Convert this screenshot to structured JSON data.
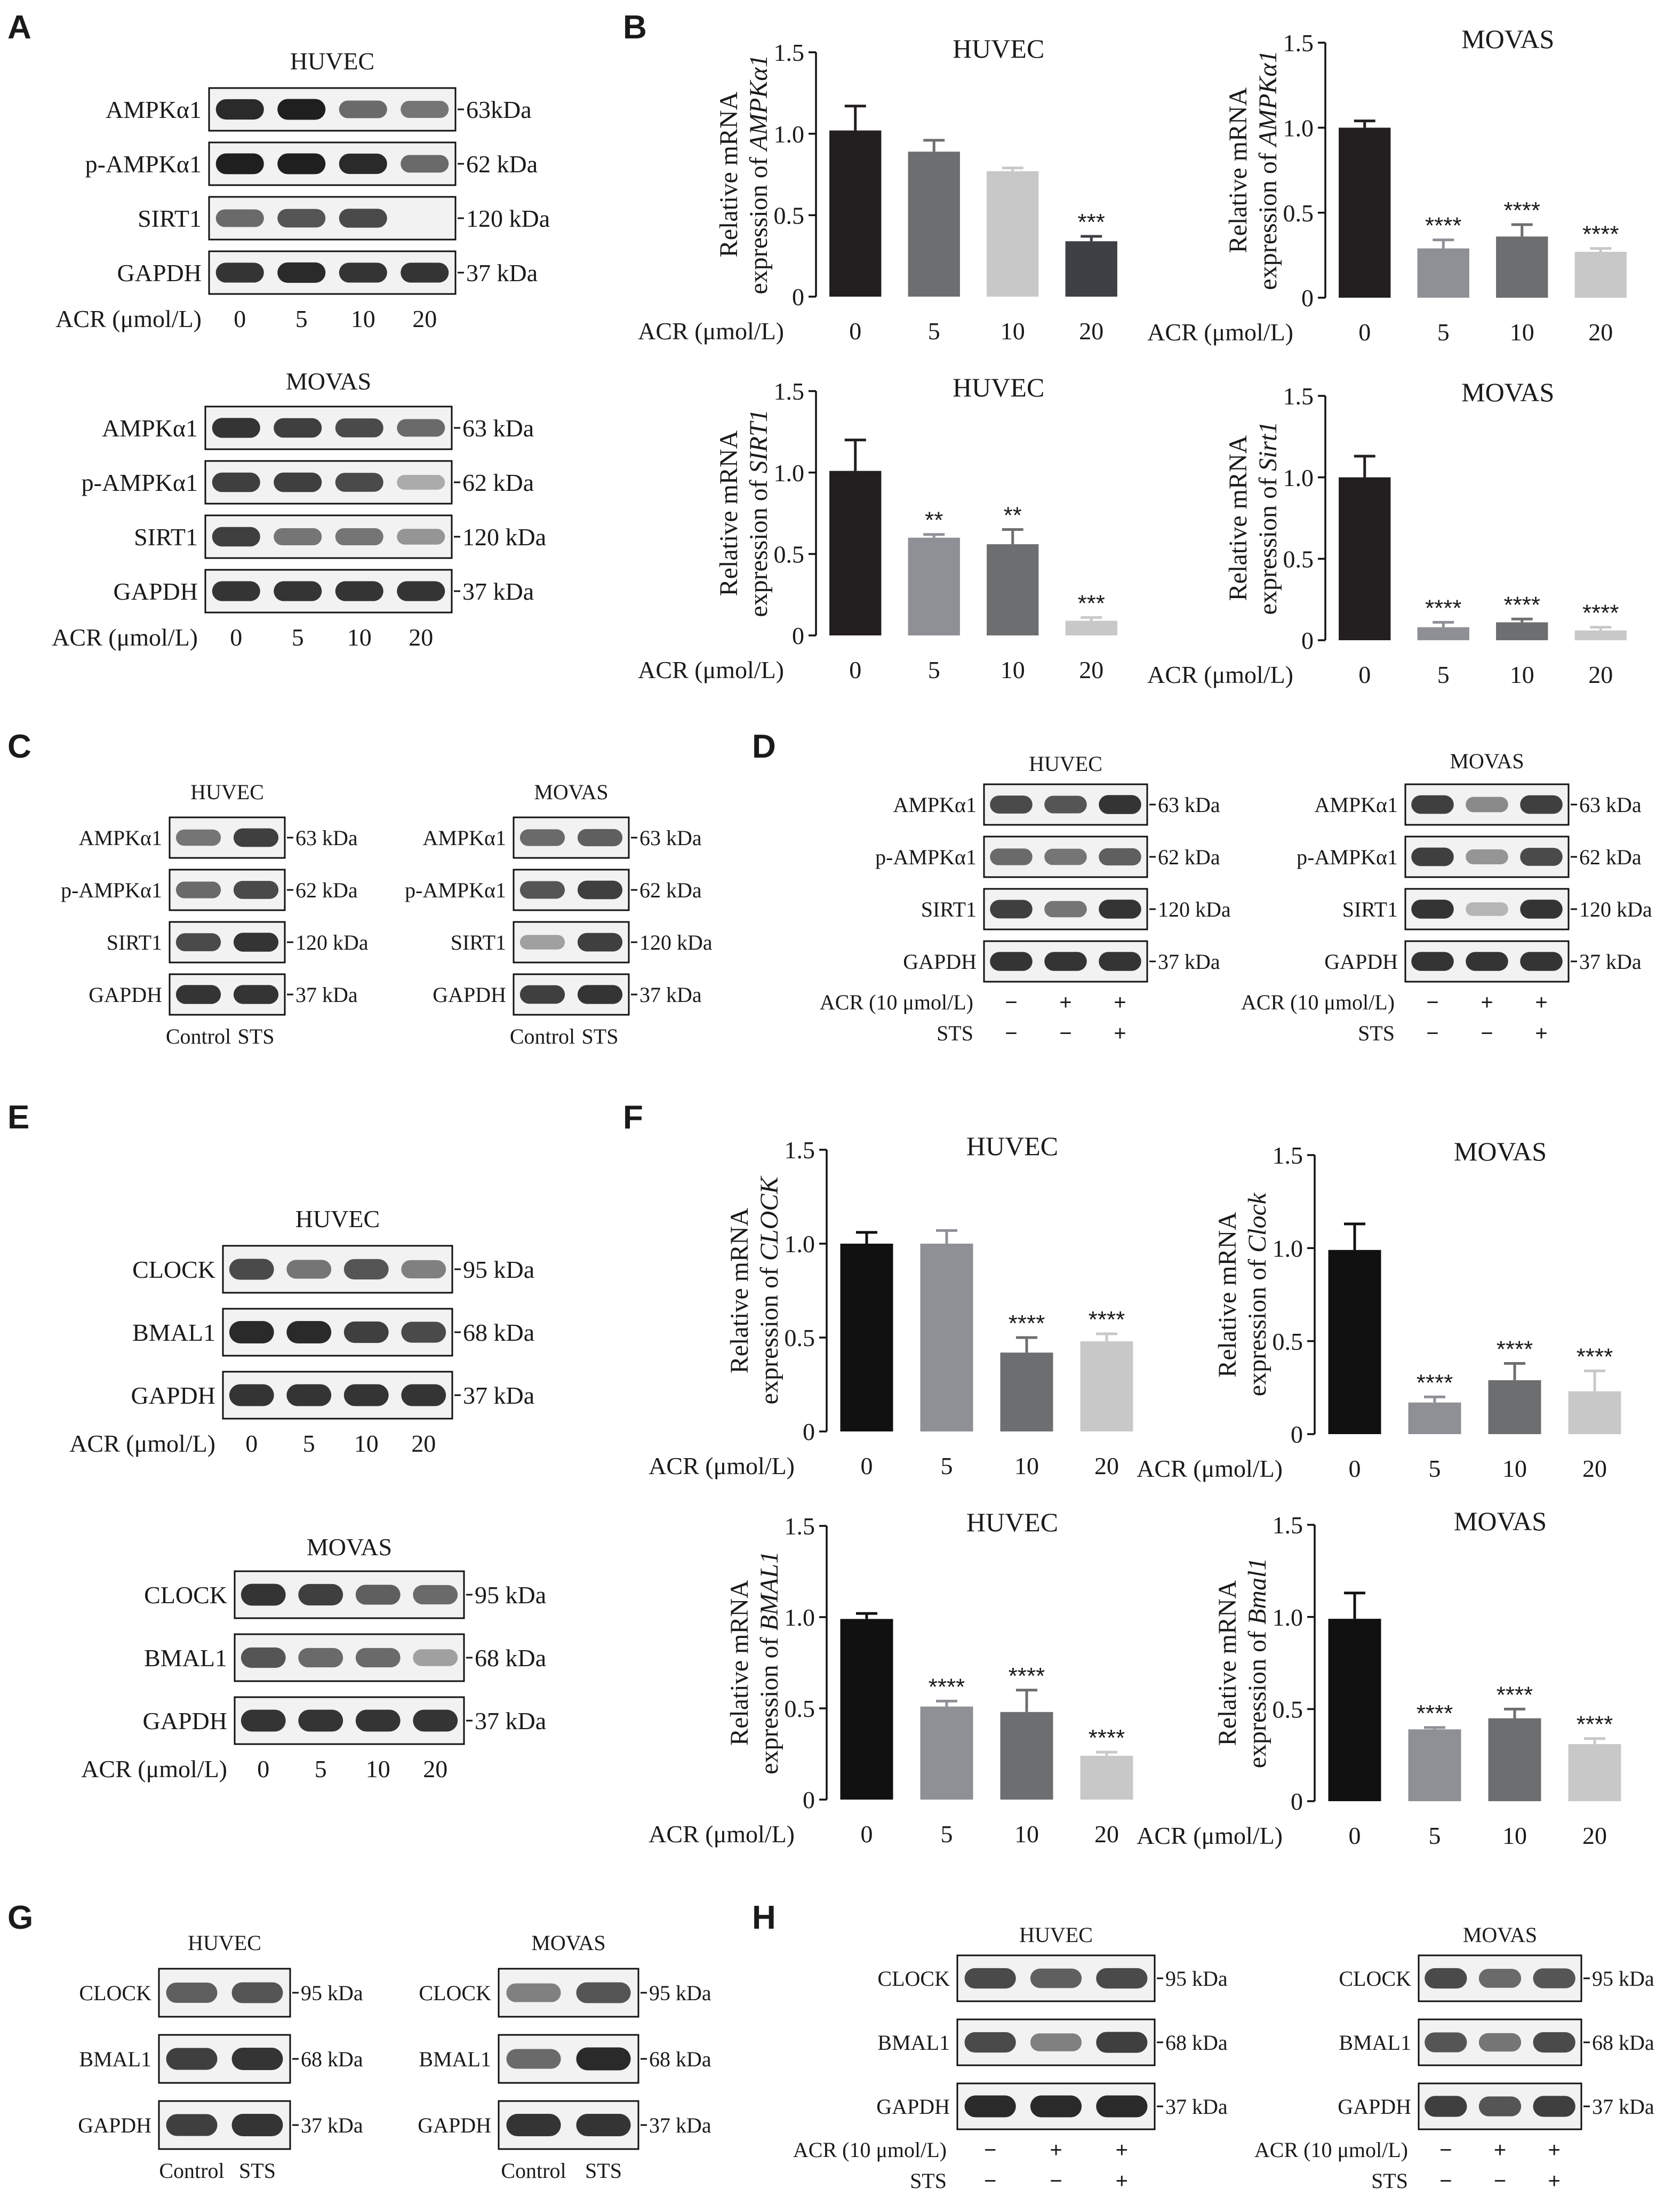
{
  "panels": {
    "A": {
      "label": "A",
      "blots": [
        {
          "cell": "HUVEC",
          "rows": [
            {
              "protein": "AMPKα1",
              "size": "63kDa",
              "intensities": [
                0.9,
                0.95,
                0.6,
                0.55
              ]
            },
            {
              "protein": "p-AMPKα1",
              "size": "62 kDa",
              "intensities": [
                0.95,
                0.95,
                0.9,
                0.6
              ]
            },
            {
              "protein": "SIRT1",
              "size": "120 kDa",
              "intensities": [
                0.6,
                0.7,
                0.75,
                0.0
              ]
            },
            {
              "protein": "GAPDH",
              "size": "37 kDa",
              "intensities": [
                0.85,
                0.9,
                0.85,
                0.85
              ]
            }
          ],
          "treatment_label": "ACR (μmol/L)",
          "lanes": [
            "0",
            "5",
            "10",
            "20"
          ]
        },
        {
          "cell": "MOVAS",
          "rows": [
            {
              "protein": "AMPKα1",
              "size": "63 kDa",
              "intensities": [
                0.85,
                0.8,
                0.75,
                0.6
              ]
            },
            {
              "protein": "p-AMPKα1",
              "size": "62 kDa",
              "intensities": [
                0.8,
                0.8,
                0.75,
                0.3
              ]
            },
            {
              "protein": "SIRT1",
              "size": "120 kDa",
              "intensities": [
                0.8,
                0.55,
                0.55,
                0.4
              ]
            },
            {
              "protein": "GAPDH",
              "size": "37 kDa",
              "intensities": [
                0.85,
                0.85,
                0.85,
                0.85
              ]
            }
          ],
          "treatment_label": "ACR (μmol/L)",
          "lanes": [
            "0",
            "5",
            "10",
            "20"
          ]
        }
      ]
    },
    "B": {
      "label": "B"
    },
    "C": {
      "label": "C",
      "blots": [
        {
          "cell": "HUVEC",
          "rows": [
            {
              "protein": "AMPKα1",
              "size": "63 kDa",
              "intensities": [
                0.55,
                0.8
              ]
            },
            {
              "protein": "p-AMPKα1",
              "size": "62 kDa",
              "intensities": [
                0.6,
                0.75
              ]
            },
            {
              "protein": "SIRT1",
              "size": "120 kDa",
              "intensities": [
                0.75,
                0.85
              ]
            },
            {
              "protein": "GAPDH",
              "size": "37 kDa",
              "intensities": [
                0.85,
                0.85
              ]
            }
          ],
          "lanes": [
            "Control",
            "STS"
          ]
        },
        {
          "cell": "MOVAS",
          "rows": [
            {
              "protein": "AMPKα1",
              "size": "63 kDa",
              "intensities": [
                0.6,
                0.65
              ]
            },
            {
              "protein": "p-AMPKα1",
              "size": "62 kDa",
              "intensities": [
                0.7,
                0.8
              ]
            },
            {
              "protein": "SIRT1",
              "size": "120 kDa",
              "intensities": [
                0.35,
                0.8
              ]
            },
            {
              "protein": "GAPDH",
              "size": "37 kDa",
              "intensities": [
                0.8,
                0.85
              ]
            }
          ],
          "lanes": [
            "Control",
            "STS"
          ]
        }
      ]
    },
    "D": {
      "label": "D",
      "blots": [
        {
          "cell": "HUVEC",
          "rows": [
            {
              "protein": "AMPKα1",
              "size": "63 kDa",
              "intensities": [
                0.75,
                0.7,
                0.85
              ]
            },
            {
              "protein": "p-AMPKα1",
              "size": "62 kDa",
              "intensities": [
                0.6,
                0.55,
                0.65
              ]
            },
            {
              "protein": "SIRT1",
              "size": "120 kDa",
              "intensities": [
                0.8,
                0.55,
                0.85
              ]
            },
            {
              "protein": "GAPDH",
              "size": "37 kDa",
              "intensities": [
                0.85,
                0.85,
                0.85
              ]
            }
          ],
          "conditions": [
            {
              "label": "ACR (10 μmol/L)",
              "values": [
                "−",
                "+",
                "+"
              ]
            },
            {
              "label": "STS",
              "values": [
                "−",
                "−",
                "+"
              ]
            }
          ]
        },
        {
          "cell": "MOVAS",
          "rows": [
            {
              "protein": "AMPKα1",
              "size": "63 kDa",
              "intensities": [
                0.8,
                0.45,
                0.8
              ]
            },
            {
              "protein": "p-AMPKα1",
              "size": "62 kDa",
              "intensities": [
                0.8,
                0.4,
                0.75
              ]
            },
            {
              "protein": "SIRT1",
              "size": "120 kDa",
              "intensities": [
                0.85,
                0.25,
                0.85
              ]
            },
            {
              "protein": "GAPDH",
              "size": "37 kDa",
              "intensities": [
                0.85,
                0.85,
                0.85
              ]
            }
          ],
          "conditions": [
            {
              "label": "ACR (10 μmol/L)",
              "values": [
                "−",
                "+",
                "+"
              ]
            },
            {
              "label": "STS",
              "values": [
                "−",
                "−",
                "+"
              ]
            }
          ]
        }
      ]
    },
    "E": {
      "label": "E",
      "blots": [
        {
          "cell": "HUVEC",
          "rows": [
            {
              "protein": "CLOCK",
              "size": "95 kDa",
              "intensities": [
                0.75,
                0.55,
                0.7,
                0.5
              ]
            },
            {
              "protein": "BMAL1",
              "size": "68 kDa",
              "intensities": [
                0.9,
                0.9,
                0.8,
                0.75
              ]
            },
            {
              "protein": "GAPDH",
              "size": "37 kDa",
              "intensities": [
                0.85,
                0.85,
                0.85,
                0.85
              ]
            }
          ],
          "treatment_label": "ACR (μmol/L)",
          "lanes": [
            "0",
            "5",
            "10",
            "20"
          ]
        },
        {
          "cell": "MOVAS",
          "rows": [
            {
              "protein": "CLOCK",
              "size": "95 kDa",
              "intensities": [
                0.85,
                0.8,
                0.65,
                0.6
              ]
            },
            {
              "protein": "BMAL1",
              "size": "68 kDa",
              "intensities": [
                0.7,
                0.6,
                0.6,
                0.35
              ]
            },
            {
              "protein": "GAPDH",
              "size": "37 kDa",
              "intensities": [
                0.85,
                0.85,
                0.85,
                0.85
              ]
            }
          ],
          "treatment_label": "ACR (μmol/L)",
          "lanes": [
            "0",
            "5",
            "10",
            "20"
          ]
        }
      ]
    },
    "F": {
      "label": "F"
    },
    "G": {
      "label": "G",
      "blots": [
        {
          "cell": "HUVEC",
          "rows": [
            {
              "protein": "CLOCK",
              "size": "95 kDa",
              "intensities": [
                0.65,
                0.7
              ]
            },
            {
              "protein": "BMAL1",
              "size": "68 kDa",
              "intensities": [
                0.8,
                0.85
              ]
            },
            {
              "protein": "GAPDH",
              "size": "37 kDa",
              "intensities": [
                0.8,
                0.85
              ]
            }
          ],
          "lanes": [
            "Control",
            "STS"
          ]
        },
        {
          "cell": "MOVAS",
          "rows": [
            {
              "protein": "CLOCK",
              "size": "95 kDa",
              "intensities": [
                0.5,
                0.7
              ]
            },
            {
              "protein": "BMAL1",
              "size": "68 kDa",
              "intensities": [
                0.6,
                0.9
              ]
            },
            {
              "protein": "GAPDH",
              "size": "37 kDa",
              "intensities": [
                0.85,
                0.85
              ]
            }
          ],
          "lanes": [
            "Control",
            "STS"
          ]
        }
      ]
    },
    "H": {
      "label": "H",
      "blots": [
        {
          "cell": "HUVEC",
          "rows": [
            {
              "protein": "CLOCK",
              "size": "95 kDa",
              "intensities": [
                0.75,
                0.65,
                0.75
              ]
            },
            {
              "protein": "BMAL1",
              "size": "68 kDa",
              "intensities": [
                0.75,
                0.5,
                0.8
              ]
            },
            {
              "protein": "GAPDH",
              "size": "37 kDa",
              "intensities": [
                0.9,
                0.9,
                0.9
              ]
            }
          ],
          "conditions": [
            {
              "label": "ACR (10 μmol/L)",
              "values": [
                "−",
                "+",
                "+"
              ]
            },
            {
              "label": "STS",
              "values": [
                "−",
                "−",
                "+"
              ]
            }
          ]
        },
        {
          "cell": "MOVAS",
          "rows": [
            {
              "protein": "CLOCK",
              "size": "95 kDa",
              "intensities": [
                0.75,
                0.6,
                0.7
              ]
            },
            {
              "protein": "BMAL1",
              "size": "68 kDa",
              "intensities": [
                0.7,
                0.55,
                0.75
              ]
            },
            {
              "protein": "GAPDH",
              "size": "37 kDa",
              "intensities": [
                0.8,
                0.7,
                0.8
              ]
            }
          ],
          "conditions": [
            {
              "label": "ACR (10 μmol/L)",
              "values": [
                "−",
                "+",
                "+"
              ]
            },
            {
              "label": "STS",
              "values": [
                "−",
                "−",
                "+"
              ]
            }
          ]
        }
      ]
    }
  },
  "chart_data": [
    {
      "panel": "B",
      "type": "bar",
      "title": "HUVEC",
      "ylabel": "Relative mRNA expression of AMPKα1",
      "ylabel_gene": "AMPKα1",
      "xlabel": "ACR (μmol/L)",
      "categories": [
        "0",
        "5",
        "10",
        "20"
      ],
      "values": [
        1.02,
        0.89,
        0.77,
        0.34
      ],
      "errors": [
        0.15,
        0.07,
        0.02,
        0.03
      ],
      "significance": [
        "",
        "",
        "",
        "***"
      ],
      "colors": [
        "#231f20",
        "#6d6e70",
        "#c8c8c8",
        "#3f4045"
      ],
      "ylim": [
        0,
        1.5
      ],
      "yticks": [
        "0",
        "0.5",
        "1.0",
        "1.5"
      ]
    },
    {
      "panel": "B",
      "type": "bar",
      "title": "MOVAS",
      "ylabel": "Relative mRNA expression of AMPKα1",
      "ylabel_gene": "AMPKα1",
      "xlabel": "ACR (μmol/L)",
      "categories": [
        "0",
        "5",
        "10",
        "20"
      ],
      "values": [
        1.0,
        0.29,
        0.36,
        0.27
      ],
      "errors": [
        0.04,
        0.05,
        0.07,
        0.02
      ],
      "significance": [
        "",
        "****",
        "****",
        "****"
      ],
      "colors": [
        "#231f20",
        "#8e9096",
        "#6d6e70",
        "#c8c8c8"
      ],
      "ylim": [
        0,
        1.5
      ],
      "yticks": [
        "0",
        "0.5",
        "1.0",
        "1.5"
      ]
    },
    {
      "panel": "B",
      "type": "bar",
      "title": "HUVEC",
      "ylabel": "Relative mRNA expression of SIRT1",
      "ylabel_gene": "SIRT1",
      "xlabel": "ACR (μmol/L)",
      "categories": [
        "0",
        "5",
        "10",
        "20"
      ],
      "values": [
        1.01,
        0.6,
        0.56,
        0.09
      ],
      "errors": [
        0.19,
        0.02,
        0.09,
        0.02
      ],
      "significance": [
        "",
        "**",
        "**",
        "***"
      ],
      "colors": [
        "#231f20",
        "#8e9096",
        "#6d6e70",
        "#c8c8c8"
      ],
      "ylim": [
        0,
        1.5
      ],
      "yticks": [
        "0",
        "0.5",
        "1.0",
        "1.5"
      ]
    },
    {
      "panel": "B",
      "type": "bar",
      "title": "MOVAS",
      "ylabel": "Relative mRNA expression of Sirt1",
      "ylabel_gene": "Sirt1",
      "xlabel": "ACR (μmol/L)",
      "categories": [
        "0",
        "5",
        "10",
        "20"
      ],
      "values": [
        1.0,
        0.08,
        0.11,
        0.06
      ],
      "errors": [
        0.13,
        0.03,
        0.02,
        0.02
      ],
      "significance": [
        "",
        "****",
        "****",
        "****"
      ],
      "colors": [
        "#231f20",
        "#8e9096",
        "#6d6e70",
        "#c8c8c8"
      ],
      "ylim": [
        0,
        1.5
      ],
      "yticks": [
        "0",
        "0.5",
        "1.0",
        "1.5"
      ]
    },
    {
      "panel": "F",
      "type": "bar",
      "title": "HUVEC",
      "ylabel": "Relative mRNA expression of CLOCK",
      "ylabel_gene": "CLOCK",
      "xlabel": "ACR (μmol/L)",
      "categories": [
        "0",
        "5",
        "10",
        "20"
      ],
      "values": [
        1.0,
        1.0,
        0.42,
        0.48
      ],
      "errors": [
        0.06,
        0.07,
        0.08,
        0.04
      ],
      "significance": [
        "",
        "",
        "****",
        "****"
      ],
      "colors": [
        "#111111",
        "#8e9096",
        "#6d6e70",
        "#c8c8c8"
      ],
      "ylim": [
        0,
        1.5
      ],
      "yticks": [
        "0",
        "0.5",
        "1.0",
        "1.5"
      ]
    },
    {
      "panel": "F",
      "type": "bar",
      "title": "MOVAS",
      "ylabel": "Relative mRNA expression of Clock",
      "ylabel_gene": "Clock",
      "xlabel": "ACR (μmol/L)",
      "categories": [
        "0",
        "5",
        "10",
        "20"
      ],
      "values": [
        0.99,
        0.17,
        0.29,
        0.23
      ],
      "errors": [
        0.14,
        0.03,
        0.09,
        0.11
      ],
      "significance": [
        "",
        "****",
        "****",
        "****"
      ],
      "colors": [
        "#111111",
        "#8e9096",
        "#6d6e70",
        "#c8c8c8"
      ],
      "ylim": [
        0,
        1.5
      ],
      "yticks": [
        "0",
        "0.5",
        "1.0",
        "1.5"
      ]
    },
    {
      "panel": "F",
      "type": "bar",
      "title": "HUVEC",
      "ylabel": "Relative mRNA expression of BMAL1",
      "ylabel_gene": "BMAL1",
      "xlabel": "ACR (μmol/L)",
      "categories": [
        "0",
        "5",
        "10",
        "20"
      ],
      "values": [
        0.99,
        0.51,
        0.48,
        0.24
      ],
      "errors": [
        0.03,
        0.03,
        0.12,
        0.02
      ],
      "significance": [
        "",
        "****",
        "****",
        "****"
      ],
      "colors": [
        "#111111",
        "#8e9096",
        "#6d6e70",
        "#c8c8c8"
      ],
      "ylim": [
        0,
        1.5
      ],
      "yticks": [
        "0",
        "0.5",
        "1.0",
        "1.5"
      ]
    },
    {
      "panel": "F",
      "type": "bar",
      "title": "MOVAS",
      "ylabel": "Relative mRNA expression of Bmal1",
      "ylabel_gene": "Bmal1",
      "xlabel": "ACR (μmol/L)",
      "categories": [
        "0",
        "5",
        "10",
        "20"
      ],
      "values": [
        0.99,
        0.39,
        0.45,
        0.31
      ],
      "errors": [
        0.14,
        0.01,
        0.05,
        0.03
      ],
      "significance": [
        "",
        "****",
        "****",
        "****"
      ],
      "colors": [
        "#111111",
        "#8e9096",
        "#6d6e70",
        "#c8c8c8"
      ],
      "ylim": [
        0,
        1.5
      ],
      "yticks": [
        "0",
        "0.5",
        "1.0",
        "1.5"
      ]
    }
  ]
}
